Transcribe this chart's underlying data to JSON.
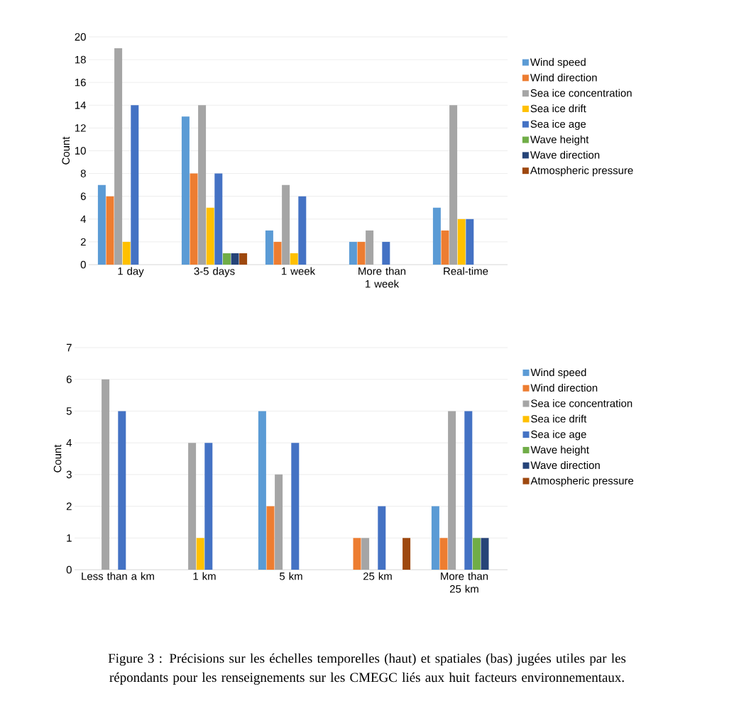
{
  "chart_data": [
    {
      "type": "bar",
      "ylabel": "Count",
      "categories": [
        "1 day",
        "3-5 days",
        "1 week",
        "More than 1 week",
        "Real-time"
      ],
      "ylim": [
        0,
        20
      ],
      "yticks": [
        0,
        2,
        4,
        6,
        8,
        10,
        12,
        14,
        16,
        18,
        20
      ],
      "grid": "y",
      "legend": "right",
      "series": [
        {
          "name": "Wind speed",
          "color": "#5b9bd5",
          "values": [
            7,
            13,
            3,
            2,
            5
          ]
        },
        {
          "name": "Wind direction",
          "color": "#ed7d31",
          "values": [
            6,
            8,
            2,
            2,
            3
          ]
        },
        {
          "name": "Sea ice concentration",
          "color": "#a5a5a5",
          "values": [
            19,
            14,
            7,
            3,
            14
          ]
        },
        {
          "name": "Sea ice drift",
          "color": "#ffc000",
          "values": [
            2,
            5,
            1,
            0,
            4
          ]
        },
        {
          "name": "Sea ice age",
          "color": "#4472c4",
          "values": [
            14,
            8,
            6,
            2,
            4
          ]
        },
        {
          "name": "Wave height",
          "color": "#70ad47",
          "values": [
            0,
            1,
            0,
            0,
            0
          ]
        },
        {
          "name": "Wave direction",
          "color": "#264478",
          "values": [
            0,
            1,
            0,
            0,
            0
          ]
        },
        {
          "name": "Atmospheric pressure",
          "color": "#9e480e",
          "values": [
            0,
            1,
            0,
            0,
            0
          ]
        }
      ]
    },
    {
      "type": "bar",
      "ylabel": "Count",
      "categories": [
        "Less than a km",
        "1 km",
        "5 km",
        "25 km",
        "More than 25 km"
      ],
      "ylim": [
        0,
        7
      ],
      "yticks": [
        0,
        1,
        2,
        3,
        4,
        5,
        6,
        7
      ],
      "grid": "y",
      "legend": "right",
      "annotations": [
        "Figure 3 : Précisions sur les échelles temporelles (haut) et spatiales (bas) jugées utiles par les répondants pour les renseignements sur les CMEGC liés aux huit facteurs environnementaux."
      ],
      "series": [
        {
          "name": "Wind speed",
          "color": "#5b9bd5",
          "values": [
            0,
            0,
            5,
            0,
            2
          ]
        },
        {
          "name": "Wind direction",
          "color": "#ed7d31",
          "values": [
            0,
            0,
            2,
            1,
            1
          ]
        },
        {
          "name": "Sea ice concentration",
          "color": "#a5a5a5",
          "values": [
            6,
            4,
            3,
            1,
            5
          ]
        },
        {
          "name": "Sea ice drift",
          "color": "#ffc000",
          "values": [
            0,
            1,
            0,
            0,
            0
          ]
        },
        {
          "name": "Sea ice age",
          "color": "#4472c4",
          "values": [
            5,
            4,
            4,
            2,
            5
          ]
        },
        {
          "name": "Wave height",
          "color": "#70ad47",
          "values": [
            0,
            0,
            0,
            0,
            1
          ]
        },
        {
          "name": "Wave direction",
          "color": "#264478",
          "values": [
            0,
            0,
            0,
            0,
            1
          ]
        },
        {
          "name": "Atmospheric pressure",
          "color": "#9e480e",
          "values": [
            0,
            0,
            0,
            1,
            0
          ]
        }
      ]
    }
  ]
}
